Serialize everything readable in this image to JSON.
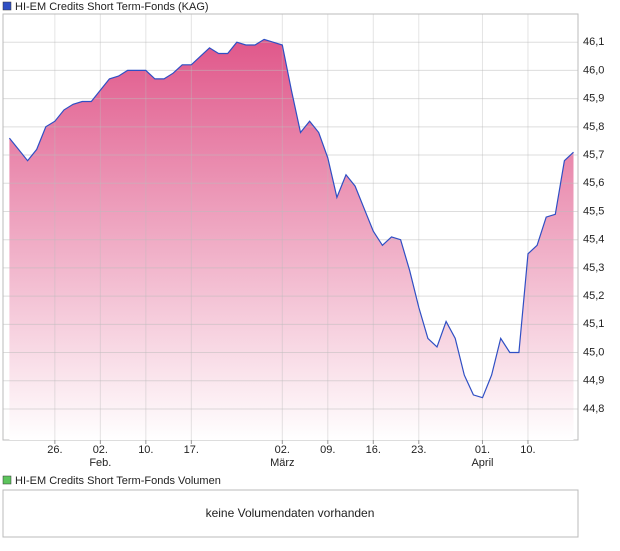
{
  "chart_data": {
    "type": "line",
    "legend": "HI-EM Credits Short Term-Fonds (KAG)",
    "series": [
      {
        "name": "HI-EM Credits Short Term-Fonds (KAG)",
        "color": "#2f4fc4",
        "fill": "#e0578a",
        "x": [
          -5,
          -4,
          -3,
          -2,
          -1,
          0,
          1,
          2,
          3,
          4,
          5,
          6,
          7,
          8,
          9,
          10,
          11,
          12,
          13,
          14,
          15,
          16,
          17,
          18,
          19,
          20,
          21,
          22,
          23,
          24,
          25,
          26,
          27,
          28,
          29,
          30,
          31,
          32,
          33,
          34,
          35,
          36,
          37,
          38,
          39,
          40,
          41,
          42,
          43,
          44,
          45,
          46,
          47,
          48,
          49,
          50,
          51,
          52,
          53,
          54,
          55,
          56,
          57
        ],
        "values": [
          45.76,
          45.72,
          45.68,
          45.72,
          45.8,
          45.82,
          45.86,
          45.88,
          45.89,
          45.89,
          45.93,
          45.97,
          45.98,
          46.0,
          46.0,
          46.0,
          45.97,
          45.97,
          45.99,
          46.02,
          46.02,
          46.05,
          46.08,
          46.06,
          46.06,
          46.1,
          46.09,
          46.09,
          46.11,
          46.1,
          46.09,
          45.93,
          45.78,
          45.82,
          45.78,
          45.69,
          45.55,
          45.63,
          45.59,
          45.51,
          45.43,
          45.38,
          45.41,
          45.4,
          45.29,
          45.16,
          45.05,
          45.02,
          45.11,
          45.05,
          44.92,
          44.85,
          44.84,
          44.92,
          45.05,
          45.0,
          45.0,
          45.35,
          45.38,
          45.48,
          45.49,
          45.68,
          45.71
        ]
      }
    ],
    "xlim": [
      -5.7,
      57.5
    ],
    "xticks": [
      {
        "value": 0,
        "label": "26."
      },
      {
        "value": 5,
        "label": "02."
      },
      {
        "value": 10,
        "label": "10."
      },
      {
        "value": 15,
        "label": "17."
      },
      {
        "value": 25,
        "label": "02."
      },
      {
        "value": 30,
        "label": "09."
      },
      {
        "value": 35,
        "label": "16."
      },
      {
        "value": 40,
        "label": "23."
      },
      {
        "value": 47,
        "label": "01."
      },
      {
        "value": 52,
        "label": "10."
      }
    ],
    "month_labels": [
      {
        "value": 5,
        "label": "Feb."
      },
      {
        "value": 25,
        "label": "März"
      },
      {
        "value": 47,
        "label": "April"
      }
    ],
    "ylim": [
      44.69,
      46.2
    ],
    "yticks": [
      {
        "value": 44.8,
        "label": "44,8"
      },
      {
        "value": 44.9,
        "label": "44,9"
      },
      {
        "value": 45.0,
        "label": "45,0"
      },
      {
        "value": 45.1,
        "label": "45,1"
      },
      {
        "value": 45.2,
        "label": "45,2"
      },
      {
        "value": 45.3,
        "label": "45,3"
      },
      {
        "value": 45.4,
        "label": "45,4"
      },
      {
        "value": 45.5,
        "label": "45,5"
      },
      {
        "value": 45.6,
        "label": "45,6"
      },
      {
        "value": 45.7,
        "label": "45,7"
      },
      {
        "value": 45.8,
        "label": "45,8"
      },
      {
        "value": 45.9,
        "label": "45,9"
      },
      {
        "value": 46.0,
        "label": "46,0"
      },
      {
        "value": 46.1,
        "label": "46,1"
      }
    ],
    "grid": true
  },
  "volume_panel": {
    "legend": "HI-EM Credits Short Term-Fonds Volumen",
    "color": "#5cc45c",
    "message": "keine Volumendaten vorhanden"
  }
}
